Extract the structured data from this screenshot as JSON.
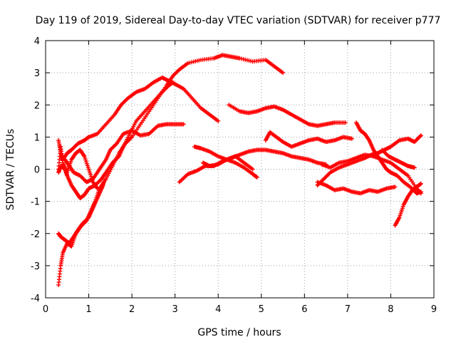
{
  "chart_data": {
    "type": "scatter",
    "title": "Day 119 of 2019, Sidereal Day-to-day VTEC variation (SDTVAR) for receiver p777",
    "xlabel": "GPS time / hours",
    "ylabel": "SDTVAR / TECUs",
    "xlim": [
      0,
      9
    ],
    "ylim": [
      -4,
      4
    ],
    "x_ticks": [
      "0",
      "1",
      "2",
      "3",
      "4",
      "5",
      "6",
      "7",
      "8",
      "9"
    ],
    "y_ticks": [
      "4",
      "3",
      "2",
      "1",
      "0",
      "-1",
      "-2",
      "-3",
      "-4"
    ],
    "grid": true,
    "marker": "plus",
    "series": [
      {
        "points": [
          [
            0.3,
            -3.6
          ],
          [
            0.35,
            -3.0
          ],
          [
            0.4,
            -2.6
          ],
          [
            0.5,
            -2.3
          ],
          [
            0.6,
            -2.4
          ],
          [
            0.7,
            -2.0
          ],
          [
            0.8,
            -1.8
          ],
          [
            0.95,
            -1.6
          ],
          [
            1.05,
            -1.3
          ],
          [
            1.15,
            -1.0
          ],
          [
            1.25,
            -0.6
          ],
          [
            1.4,
            -0.3
          ],
          [
            1.55,
            0.1
          ],
          [
            1.7,
            0.5
          ],
          [
            1.85,
            0.8
          ],
          [
            2.0,
            1.0
          ],
          [
            2.2,
            1.4
          ],
          [
            2.4,
            1.8
          ],
          [
            2.6,
            2.2
          ],
          [
            2.8,
            2.6
          ],
          [
            2.95,
            2.9
          ],
          [
            3.1,
            3.1
          ],
          [
            3.3,
            3.3
          ],
          [
            3.6,
            3.4
          ],
          [
            3.9,
            3.45
          ],
          [
            4.1,
            3.55
          ],
          [
            4.3,
            3.5
          ],
          [
            4.5,
            3.45
          ],
          [
            4.8,
            3.35
          ],
          [
            5.1,
            3.4
          ],
          [
            5.3,
            3.2
          ],
          [
            5.5,
            3.0
          ]
        ]
      },
      {
        "points": [
          [
            0.3,
            0.9
          ],
          [
            0.35,
            0.5
          ],
          [
            0.4,
            0.3
          ],
          [
            0.5,
            0.5
          ],
          [
            0.6,
            0.6
          ],
          [
            0.75,
            0.8
          ],
          [
            0.9,
            0.9
          ],
          [
            1.0,
            1.0
          ],
          [
            1.2,
            1.1
          ],
          [
            1.4,
            1.4
          ],
          [
            1.6,
            1.7
          ],
          [
            1.75,
            2.0
          ],
          [
            1.9,
            2.2
          ],
          [
            2.1,
            2.4
          ],
          [
            2.3,
            2.5
          ],
          [
            2.5,
            2.7
          ],
          [
            2.7,
            2.85
          ],
          [
            2.85,
            2.75
          ],
          [
            3.0,
            2.65
          ],
          [
            3.2,
            2.5
          ],
          [
            3.4,
            2.2
          ],
          [
            3.6,
            1.9
          ],
          [
            3.8,
            1.7
          ],
          [
            4.0,
            1.5
          ]
        ]
      },
      {
        "points": [
          [
            0.3,
            -0.1
          ],
          [
            0.35,
            0.1
          ],
          [
            0.45,
            0.0
          ],
          [
            0.5,
            -0.2
          ],
          [
            0.6,
            -0.5
          ],
          [
            0.7,
            -0.7
          ],
          [
            0.8,
            -0.9
          ],
          [
            0.9,
            -0.8
          ],
          [
            1.0,
            -0.6
          ],
          [
            1.15,
            -0.5
          ],
          [
            1.3,
            -0.3
          ],
          [
            1.4,
            -0.1
          ],
          [
            1.55,
            0.2
          ],
          [
            1.7,
            0.4
          ],
          [
            1.8,
            0.7
          ],
          [
            1.95,
            1.1
          ],
          [
            2.1,
            1.5
          ],
          [
            2.3,
            1.8
          ],
          [
            2.5,
            2.1
          ],
          [
            2.7,
            2.4
          ],
          [
            2.85,
            2.6
          ],
          [
            2.95,
            2.7
          ]
        ]
      },
      {
        "points": [
          [
            0.45,
            0.3
          ],
          [
            0.55,
            0.1
          ],
          [
            0.65,
            -0.1
          ],
          [
            0.8,
            -0.2
          ],
          [
            0.95,
            -0.4
          ],
          [
            1.1,
            -0.3
          ],
          [
            1.25,
            0.0
          ],
          [
            1.4,
            0.3
          ],
          [
            1.5,
            0.6
          ],
          [
            1.65,
            0.8
          ],
          [
            1.8,
            1.1
          ],
          [
            2.0,
            1.2
          ],
          [
            2.2,
            1.05
          ],
          [
            2.4,
            1.1
          ],
          [
            2.6,
            1.35
          ],
          [
            2.8,
            1.4
          ],
          [
            3.0,
            1.4
          ],
          [
            3.2,
            1.4
          ]
        ]
      },
      {
        "points": [
          [
            0.3,
            -2.0
          ],
          [
            0.35,
            -2.1
          ],
          [
            0.45,
            -2.2
          ],
          [
            0.55,
            -2.3
          ],
          [
            0.65,
            -2.1
          ],
          [
            0.75,
            -1.9
          ],
          [
            0.85,
            -1.7
          ],
          [
            1.0,
            -1.5
          ],
          [
            1.1,
            -1.2
          ],
          [
            1.2,
            -0.9
          ],
          [
            1.3,
            -0.6
          ],
          [
            1.35,
            -0.4
          ]
        ]
      },
      {
        "points": [
          [
            0.3,
            0.0
          ],
          [
            0.35,
            0.7
          ],
          [
            0.4,
            0.2
          ],
          [
            0.5,
            -0.1
          ],
          [
            0.6,
            0.3
          ],
          [
            0.7,
            0.5
          ],
          [
            0.8,
            0.6
          ],
          [
            0.9,
            0.4
          ],
          [
            1.0,
            0.0
          ],
          [
            1.1,
            -0.4
          ],
          [
            1.2,
            -0.6
          ]
        ]
      },
      {
        "points": [
          [
            3.1,
            -0.4
          ],
          [
            3.3,
            -0.15
          ],
          [
            3.5,
            -0.05
          ],
          [
            3.7,
            0.1
          ],
          [
            3.9,
            0.1
          ],
          [
            4.1,
            0.25
          ],
          [
            4.3,
            0.35
          ],
          [
            4.5,
            0.45
          ],
          [
            4.7,
            0.55
          ],
          [
            4.9,
            0.6
          ],
          [
            5.1,
            0.6
          ],
          [
            5.3,
            0.55
          ],
          [
            5.5,
            0.5
          ],
          [
            5.7,
            0.4
          ],
          [
            5.9,
            0.35
          ],
          [
            6.1,
            0.3
          ],
          [
            6.3,
            0.2
          ],
          [
            6.5,
            0.15
          ]
        ]
      },
      {
        "points": [
          [
            3.45,
            0.7
          ],
          [
            3.6,
            0.65
          ],
          [
            3.8,
            0.55
          ],
          [
            4.0,
            0.4
          ],
          [
            4.2,
            0.3
          ],
          [
            4.4,
            0.2
          ],
          [
            4.6,
            0.05
          ],
          [
            4.8,
            -0.15
          ],
          [
            4.9,
            -0.25
          ]
        ]
      },
      {
        "points": [
          [
            3.65,
            0.2
          ],
          [
            3.8,
            0.1
          ],
          [
            4.0,
            0.15
          ],
          [
            4.2,
            0.3
          ],
          [
            4.4,
            0.4
          ],
          [
            4.6,
            0.2
          ],
          [
            4.8,
            0.0
          ]
        ]
      },
      {
        "points": [
          [
            4.25,
            2.0
          ],
          [
            4.5,
            1.8
          ],
          [
            4.7,
            1.75
          ],
          [
            4.9,
            1.8
          ],
          [
            5.1,
            1.9
          ],
          [
            5.3,
            1.95
          ],
          [
            5.5,
            1.85
          ],
          [
            5.7,
            1.7
          ],
          [
            5.9,
            1.55
          ],
          [
            6.1,
            1.4
          ],
          [
            6.3,
            1.35
          ],
          [
            6.5,
            1.4
          ],
          [
            6.7,
            1.45
          ],
          [
            6.95,
            1.45
          ]
        ]
      },
      {
        "points": [
          [
            5.1,
            0.9
          ],
          [
            5.2,
            1.15
          ],
          [
            5.35,
            1.0
          ],
          [
            5.5,
            0.85
          ],
          [
            5.7,
            0.7
          ],
          [
            5.9,
            0.8
          ],
          [
            6.1,
            0.9
          ],
          [
            6.3,
            0.95
          ],
          [
            6.5,
            0.85
          ],
          [
            6.7,
            0.9
          ],
          [
            6.9,
            1.0
          ],
          [
            7.1,
            0.95
          ]
        ]
      },
      {
        "points": [
          [
            6.3,
            -0.5
          ],
          [
            6.45,
            -0.3
          ],
          [
            6.6,
            -0.1
          ],
          [
            6.8,
            0.05
          ],
          [
            7.0,
            0.15
          ],
          [
            7.2,
            0.25
          ],
          [
            7.4,
            0.35
          ],
          [
            7.55,
            0.45
          ],
          [
            7.7,
            0.5
          ],
          [
            7.85,
            0.6
          ],
          [
            8.0,
            0.7
          ],
          [
            8.2,
            0.9
          ],
          [
            8.4,
            0.95
          ],
          [
            8.55,
            0.85
          ],
          [
            8.7,
            1.05
          ]
        ]
      },
      {
        "points": [
          [
            6.3,
            -0.4
          ],
          [
            6.5,
            -0.5
          ],
          [
            6.7,
            -0.65
          ],
          [
            6.9,
            -0.6
          ],
          [
            7.1,
            -0.7
          ],
          [
            7.3,
            -0.75
          ],
          [
            7.5,
            -0.65
          ],
          [
            7.7,
            -0.7
          ],
          [
            7.9,
            -0.6
          ],
          [
            8.1,
            -0.55
          ]
        ]
      },
      {
        "points": [
          [
            6.4,
            0.15
          ],
          [
            6.6,
            0.05
          ],
          [
            6.8,
            0.2
          ],
          [
            7.0,
            0.25
          ],
          [
            7.2,
            0.35
          ],
          [
            7.4,
            0.45
          ],
          [
            7.6,
            0.4
          ],
          [
            7.8,
            0.3
          ],
          [
            8.0,
            0.2
          ],
          [
            8.2,
            0.0
          ],
          [
            8.4,
            -0.2
          ],
          [
            8.6,
            -0.6
          ],
          [
            8.7,
            -0.75
          ]
        ]
      },
      {
        "points": [
          [
            7.2,
            1.45
          ],
          [
            7.3,
            1.2
          ],
          [
            7.4,
            1.1
          ],
          [
            7.5,
            0.9
          ],
          [
            7.6,
            0.6
          ],
          [
            7.7,
            0.4
          ],
          [
            7.8,
            0.2
          ],
          [
            7.9,
            0.0
          ],
          [
            8.0,
            -0.1
          ],
          [
            8.15,
            -0.2
          ],
          [
            8.3,
            -0.4
          ],
          [
            8.45,
            -0.55
          ],
          [
            8.6,
            -0.75
          ],
          [
            8.7,
            -0.7
          ]
        ]
      },
      {
        "points": [
          [
            8.1,
            -1.75
          ],
          [
            8.2,
            -1.5
          ],
          [
            8.3,
            -1.1
          ],
          [
            8.4,
            -0.85
          ],
          [
            8.5,
            -0.65
          ],
          [
            8.6,
            -0.55
          ],
          [
            8.7,
            -0.45
          ]
        ]
      },
      {
        "points": [
          [
            7.8,
            0.6
          ],
          [
            7.95,
            0.4
          ],
          [
            8.1,
            0.3
          ],
          [
            8.25,
            0.2
          ],
          [
            8.4,
            0.1
          ],
          [
            8.55,
            0.05
          ]
        ]
      }
    ]
  }
}
